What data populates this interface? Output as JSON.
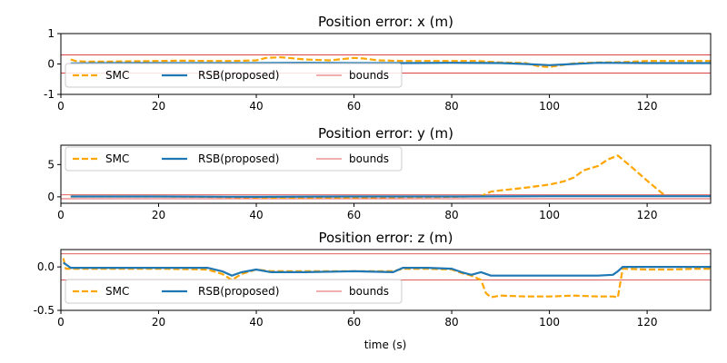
{
  "figure": {
    "xlabel": "time (s)"
  },
  "chart_data": [
    {
      "type": "line",
      "title": "Position error: x (m)",
      "xlim": [
        0,
        133
      ],
      "ylim": [
        -1,
        1
      ],
      "x_ticks": [
        0,
        20,
        40,
        60,
        80,
        100,
        120
      ],
      "y_ticks": [
        -1,
        0,
        1
      ],
      "bounds": [
        0.3,
        -0.3
      ],
      "legend": {
        "placement": "lower-left",
        "entries": [
          "SMC",
          "RSB(proposed)",
          "bounds"
        ]
      },
      "series": [
        {
          "name": "SMC",
          "color": "#ffa500",
          "style": "dashed",
          "x": [
            2,
            3,
            5,
            10,
            15,
            20,
            25,
            30,
            35,
            40,
            42,
            45,
            50,
            55,
            60,
            62,
            65,
            70,
            75,
            80,
            85,
            90,
            95,
            98,
            100,
            102,
            105,
            110,
            115,
            120,
            125,
            130,
            133
          ],
          "y": [
            0.15,
            0.1,
            0.08,
            0.08,
            0.09,
            0.1,
            0.11,
            0.1,
            0.1,
            0.12,
            0.2,
            0.22,
            0.15,
            0.12,
            0.2,
            0.18,
            0.12,
            0.1,
            0.1,
            0.1,
            0.1,
            0.05,
            0.03,
            -0.08,
            -0.1,
            -0.05,
            0.02,
            0.05,
            0.06,
            0.1,
            0.1,
            0.1,
            0.1
          ]
        },
        {
          "name": "RSB(proposed)",
          "color": "#1f77b4",
          "style": "solid",
          "x": [
            2,
            10,
            20,
            30,
            40,
            50,
            60,
            70,
            80,
            90,
            95,
            100,
            105,
            110,
            120,
            133
          ],
          "y": [
            0.02,
            0.03,
            0.03,
            0.03,
            0.03,
            0.04,
            0.03,
            0.03,
            0.04,
            0.03,
            0.0,
            -0.04,
            0.0,
            0.04,
            0.03,
            0.03
          ]
        }
      ]
    },
    {
      "type": "line",
      "title": "Position error: y (m)",
      "xlim": [
        0,
        133
      ],
      "ylim": [
        -1,
        8
      ],
      "x_ticks": [
        0,
        20,
        40,
        60,
        80,
        100,
        120
      ],
      "y_ticks": [
        0,
        5
      ],
      "bounds": [
        0.3,
        -0.3
      ],
      "legend": {
        "placement": "upper-left",
        "entries": [
          "SMC",
          "RSB(proposed)",
          "bounds"
        ]
      },
      "series": [
        {
          "name": "SMC",
          "color": "#ffa500",
          "style": "dashed",
          "x": [
            2,
            10,
            20,
            30,
            40,
            45,
            50,
            60,
            70,
            80,
            86,
            88,
            90,
            95,
            100,
            103,
            105,
            107,
            110,
            112,
            114,
            117,
            120,
            123,
            124
          ],
          "y": [
            0.05,
            0.05,
            0.05,
            0.0,
            -0.1,
            -0.15,
            -0.12,
            -0.1,
            -0.05,
            0.0,
            0.1,
            0.8,
            1.0,
            1.4,
            1.9,
            2.4,
            3.0,
            4.1,
            4.8,
            5.8,
            6.4,
            4.5,
            2.5,
            0.6,
            0.1
          ]
        },
        {
          "name": "RSB(proposed)",
          "color": "#1f77b4",
          "style": "solid",
          "x": [
            2,
            20,
            40,
            60,
            80,
            100,
            120,
            133
          ],
          "y": [
            0.05,
            0.05,
            0.0,
            0.05,
            0.05,
            0.1,
            0.1,
            0.1
          ]
        }
      ]
    },
    {
      "type": "line",
      "title": "Position error: z (m)",
      "xlim": [
        0,
        133
      ],
      "ylim": [
        -0.5,
        0.2
      ],
      "x_ticks": [
        0,
        20,
        40,
        60,
        80,
        100,
        120
      ],
      "y_ticks": [
        -0.5,
        0.0
      ],
      "bounds": [
        0.15,
        -0.15
      ],
      "legend": {
        "placement": "lower-left",
        "entries": [
          "SMC",
          "RSB(proposed)",
          "bounds"
        ]
      },
      "series": [
        {
          "name": "SMC",
          "color": "#ffa500",
          "style": "dashed",
          "x": [
            0.5,
            1,
            3,
            10,
            20,
            30,
            33,
            35,
            37,
            40,
            43,
            50,
            60,
            68,
            70,
            75,
            80,
            82,
            84,
            86,
            87,
            88,
            90,
            95,
            100,
            105,
            110,
            113,
            114,
            115,
            120,
            125,
            130,
            133
          ],
          "y": [
            0.1,
            -0.02,
            -0.02,
            -0.02,
            -0.02,
            -0.03,
            -0.08,
            -0.15,
            -0.08,
            -0.03,
            -0.05,
            -0.05,
            -0.05,
            -0.05,
            -0.02,
            -0.02,
            -0.03,
            -0.07,
            -0.1,
            -0.15,
            -0.3,
            -0.35,
            -0.33,
            -0.34,
            -0.34,
            -0.33,
            -0.34,
            -0.34,
            -0.35,
            -0.02,
            -0.03,
            -0.03,
            -0.02,
            -0.02
          ]
        },
        {
          "name": "RSB(proposed)",
          "color": "#1f77b4",
          "style": "solid",
          "x": [
            0.5,
            2,
            10,
            20,
            30,
            33,
            35,
            37,
            40,
            43,
            50,
            60,
            68,
            70,
            75,
            80,
            82,
            84,
            86,
            88,
            90,
            100,
            110,
            113,
            114,
            115,
            120,
            133
          ],
          "y": [
            0.05,
            -0.01,
            -0.01,
            -0.01,
            -0.01,
            -0.05,
            -0.1,
            -0.06,
            -0.03,
            -0.06,
            -0.06,
            -0.05,
            -0.06,
            -0.01,
            -0.01,
            -0.02,
            -0.06,
            -0.09,
            -0.06,
            -0.1,
            -0.1,
            -0.1,
            -0.1,
            -0.09,
            -0.05,
            0.0,
            0.0,
            0.0
          ]
        }
      ]
    }
  ]
}
